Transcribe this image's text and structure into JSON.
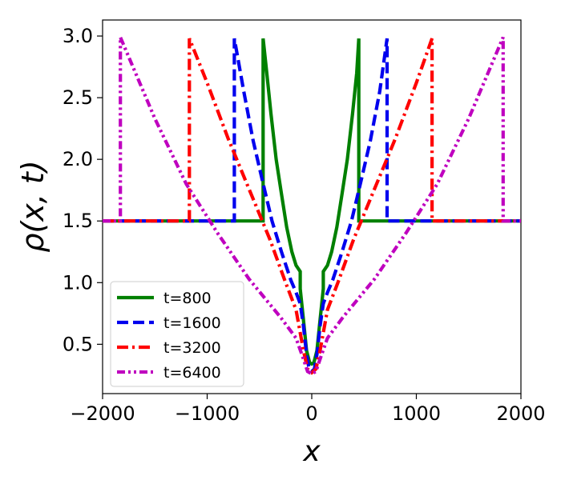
{
  "chart_data": {
    "type": "line",
    "xlabel": "x",
    "ylabel": "ρ(x, t)",
    "xlim": [
      -2000,
      2000
    ],
    "ylim": [
      0.1,
      3.13
    ],
    "xticks": [
      -2000,
      -1000,
      0,
      1000,
      2000
    ],
    "xtick_labels": [
      "−2000",
      "−1000",
      "0",
      "1000",
      "2000"
    ],
    "yticks": [
      0.5,
      1.0,
      1.5,
      2.0,
      2.5,
      3.0
    ],
    "ytick_labels": [
      "0.5",
      "1.0",
      "1.5",
      "2.0",
      "2.5",
      "3.0"
    ],
    "grid": false,
    "legend_position": "lower-left",
    "series": [
      {
        "name": "t=800",
        "color": "#008000",
        "dash": "solid",
        "x": [
          -2000,
          -465,
          -465,
          -430,
          -390,
          -340,
          -290,
          -240,
          -190,
          -150,
          -110,
          -110,
          -80,
          -50,
          -20,
          0,
          20,
          50,
          80,
          110,
          110,
          150,
          190,
          240,
          290,
          340,
          390,
          430,
          450,
          450,
          470,
          2000
        ],
        "y": [
          1.5,
          1.5,
          2.98,
          2.7,
          2.37,
          2.0,
          1.72,
          1.45,
          1.25,
          1.14,
          1.09,
          0.95,
          0.7,
          0.45,
          0.35,
          0.34,
          0.35,
          0.45,
          0.7,
          0.95,
          1.09,
          1.14,
          1.25,
          1.45,
          1.72,
          2.0,
          2.37,
          2.7,
          2.98,
          1.5,
          1.5,
          1.5
        ]
      },
      {
        "name": "t=1600",
        "color": "#0000ee",
        "dash": "dashed",
        "x": [
          -2000,
          -740,
          -740,
          -650,
          -560,
          -470,
          -380,
          -290,
          -200,
          -150,
          -110,
          -80,
          -50,
          -25,
          0,
          25,
          50,
          80,
          110,
          150,
          200,
          290,
          380,
          470,
          560,
          650,
          720,
          720,
          2000
        ],
        "y": [
          1.5,
          1.5,
          2.98,
          2.55,
          2.15,
          1.82,
          1.5,
          1.25,
          1.02,
          0.92,
          0.83,
          0.65,
          0.42,
          0.3,
          0.28,
          0.3,
          0.42,
          0.65,
          0.83,
          0.92,
          1.02,
          1.25,
          1.5,
          1.82,
          2.15,
          2.55,
          2.98,
          1.5,
          1.5
        ]
      },
      {
        "name": "t=3200",
        "color": "#ff0000",
        "dash": "dash-dot",
        "x": [
          -2000,
          -1170,
          -1170,
          -1000,
          -800,
          -600,
          -400,
          -250,
          -150,
          -80,
          -40,
          0,
          40,
          80,
          150,
          250,
          400,
          600,
          800,
          1000,
          1150,
          1150,
          2000
        ],
        "y": [
          1.5,
          1.5,
          2.98,
          2.62,
          2.17,
          1.76,
          1.35,
          1.0,
          0.78,
          0.45,
          0.3,
          0.27,
          0.3,
          0.45,
          0.78,
          1.0,
          1.35,
          1.76,
          2.17,
          2.62,
          2.98,
          1.5,
          1.5
        ]
      },
      {
        "name": "t=6400",
        "color": "#bf00bf",
        "dash": "dash-dot-dot",
        "x": [
          -2000,
          -1830,
          -1830,
          -1500,
          -1200,
          -900,
          -600,
          -300,
          -150,
          -80,
          -40,
          0,
          40,
          80,
          150,
          300,
          600,
          900,
          1200,
          1500,
          1830,
          1830,
          2000
        ],
        "y": [
          1.5,
          1.5,
          2.99,
          2.33,
          1.8,
          1.4,
          1.03,
          0.72,
          0.55,
          0.38,
          0.28,
          0.26,
          0.28,
          0.38,
          0.55,
          0.72,
          1.03,
          1.4,
          1.8,
          2.33,
          2.99,
          1.5,
          1.5
        ]
      }
    ]
  }
}
